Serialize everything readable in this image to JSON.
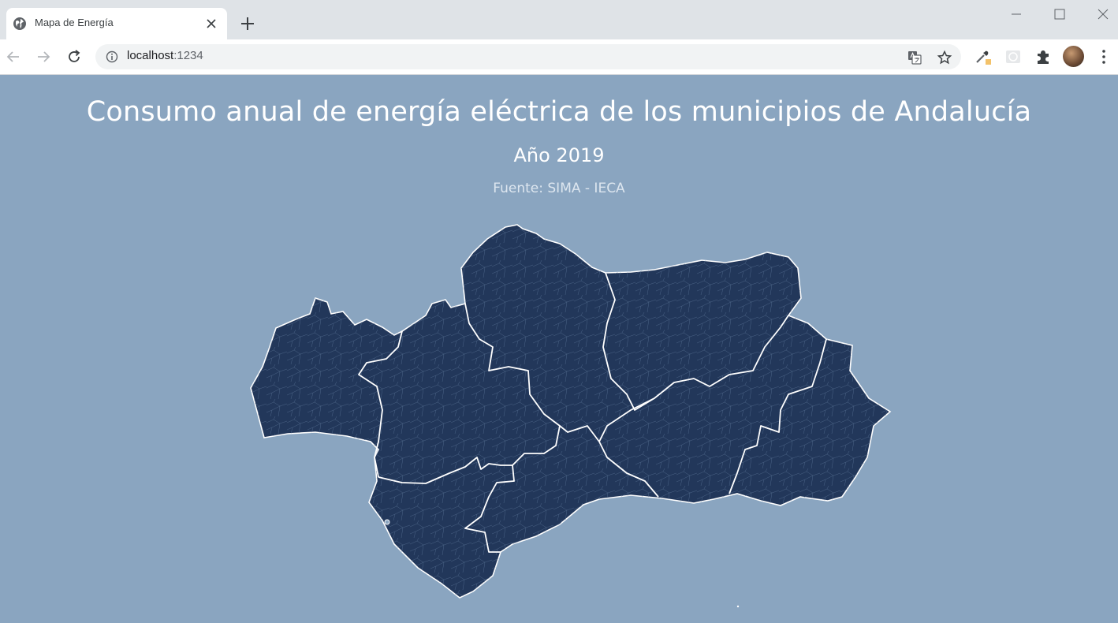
{
  "browser": {
    "tab": {
      "title": "Mapa de Energía",
      "favicon": "globe-icon",
      "close_icon": "close-icon"
    },
    "new_tab_icon": "plus-icon",
    "window_controls": [
      "minimize-icon",
      "maximize-icon",
      "close-icon"
    ],
    "nav": [
      "back-arrow-icon",
      "forward-arrow-icon",
      "reload-icon"
    ],
    "address": {
      "host": "localhost",
      "port": ":1234",
      "info_icon": "info-icon"
    },
    "omnibox_actions": [
      "translate-icon",
      "star-icon"
    ],
    "extensions": [
      "eyedropper-extension-icon",
      "extension-icon",
      "puzzle-extensions-icon"
    ],
    "profile": "avatar",
    "menu_icon": "kebab-menu-icon"
  },
  "page": {
    "title": "Consumo anual de energía eléctrica de los municipios de Andalucía",
    "subtitle": "Año 2019",
    "source": "Fuente: SIMA - IECA",
    "background_color": "#8aa5c0",
    "map": {
      "region": "Andalucía",
      "fill_color": "#22375a",
      "province_border_color": "#ffffff"
    }
  }
}
